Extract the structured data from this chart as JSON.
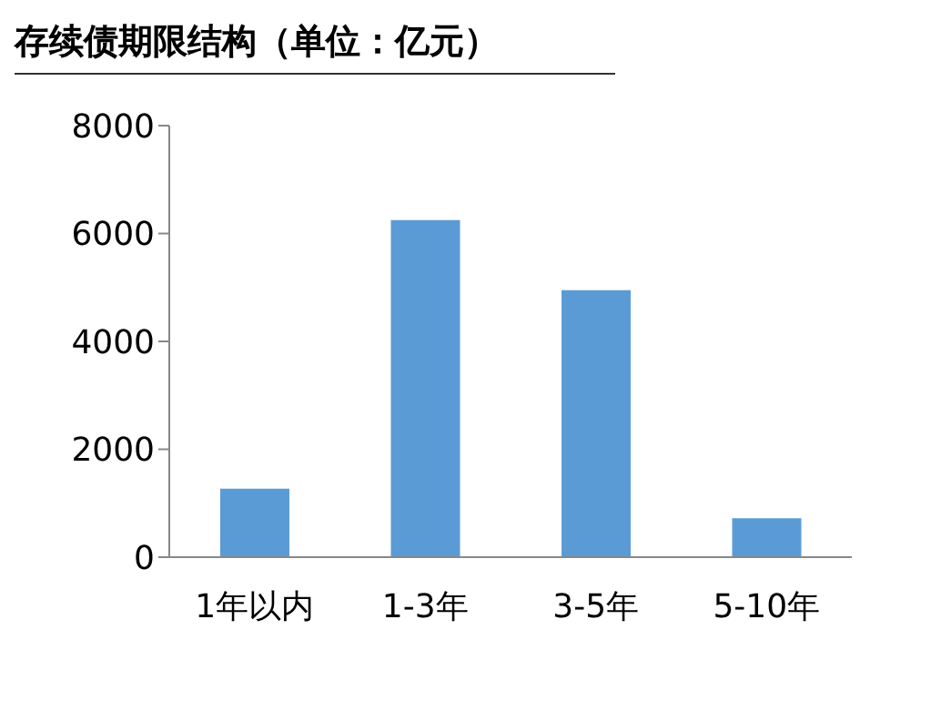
{
  "chart_data": {
    "type": "bar",
    "title": "存续债期限结构（单位：亿元）",
    "categories": [
      "1年以内",
      "1-3年",
      "3-5年",
      "5-10年"
    ],
    "values": [
      1270,
      6250,
      4950,
      720
    ],
    "color": "#5b9bd5",
    "ylim": [
      0,
      8000
    ],
    "yticks": [
      0,
      2000,
      4000,
      6000,
      8000
    ],
    "grid": false
  }
}
